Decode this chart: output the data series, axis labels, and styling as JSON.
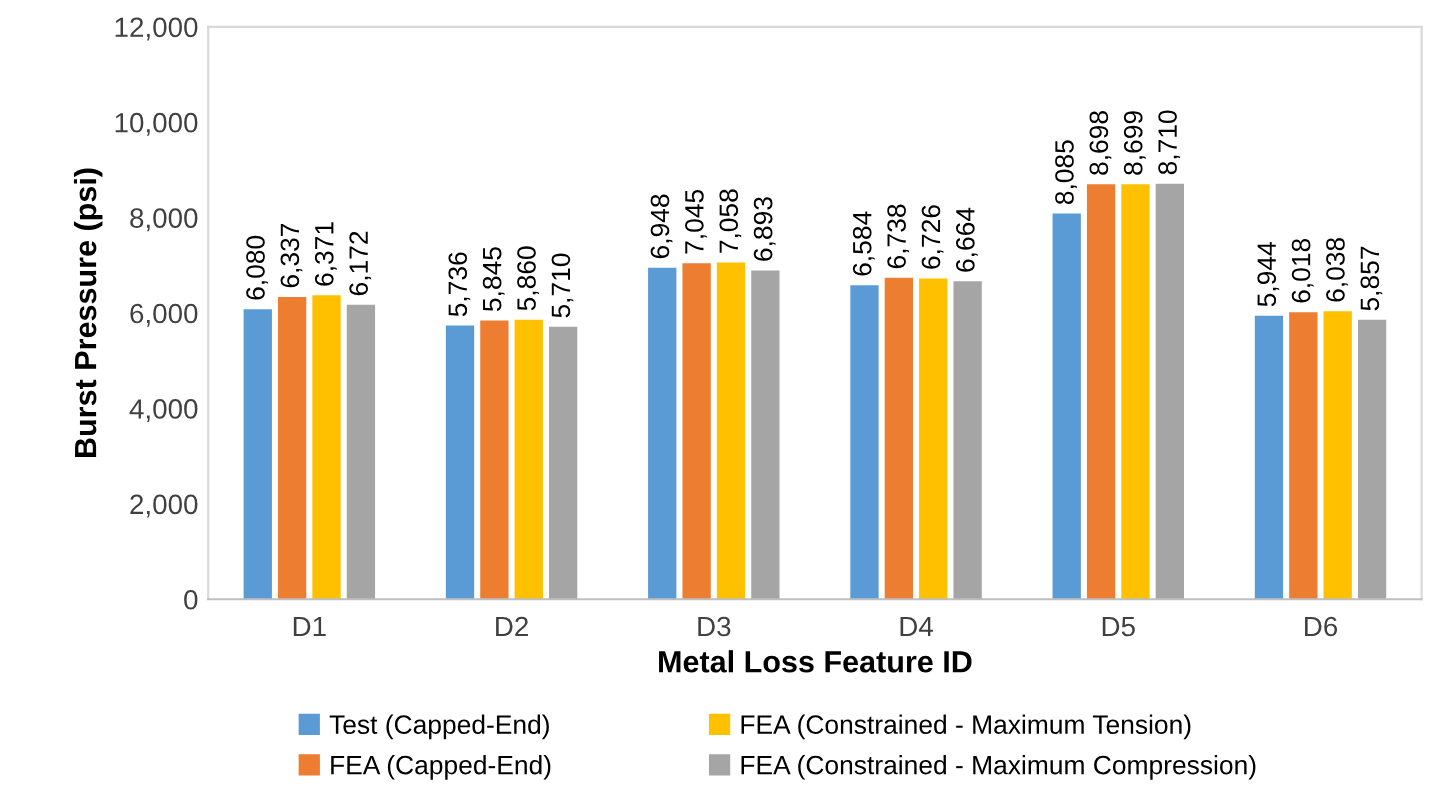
{
  "chart_data": {
    "type": "bar",
    "xlabel": "Metal Loss Feature ID",
    "ylabel": "Burst Pressure (psi)",
    "categories": [
      "D1",
      "D2",
      "D3",
      "D4",
      "D5",
      "D6"
    ],
    "series": [
      {
        "name": "Test (Capped-End)",
        "color": "#5b9bd5",
        "values": [
          6080,
          5736,
          6948,
          6584,
          8085,
          5944
        ],
        "value_labels": [
          "6,080",
          "5,736",
          "6,948",
          "6,584",
          "8,085",
          "5,944"
        ]
      },
      {
        "name": "FEA (Capped-End)",
        "color": "#ed7d31",
        "values": [
          6337,
          5845,
          7045,
          6738,
          8698,
          6018
        ],
        "value_labels": [
          "6,337",
          "5,845",
          "7,045",
          "6,738",
          "8,698",
          "6,018"
        ]
      },
      {
        "name": "FEA (Constrained - Maximum Tension)",
        "color": "#ffc000",
        "values": [
          6371,
          5860,
          7058,
          6726,
          8699,
          6038
        ],
        "value_labels": [
          "6,371",
          "5,860",
          "7,058",
          "6,726",
          "8,699",
          "6,038"
        ]
      },
      {
        "name": "FEA (Constrained - Maximum Compression)",
        "color": "#a5a5a5",
        "values": [
          6172,
          5710,
          6893,
          6664,
          8710,
          5857
        ],
        "value_labels": [
          "6,172",
          "5,710",
          "6,893",
          "6,664",
          "8,710",
          "5,857"
        ]
      }
    ],
    "ylim": [
      0,
      12000
    ],
    "yticks": [
      0,
      {
        "value": 2000,
        "label": "2,000"
      },
      {
        "value": 4000,
        "label": "4,000"
      },
      {
        "value": 6000,
        "label": "6,000"
      },
      {
        "value": 8000,
        "label": "8,000"
      },
      {
        "value": 10000,
        "label": "10,000"
      },
      {
        "value": 12000,
        "label": "12,000"
      }
    ],
    "legend": "bottom",
    "grid": false
  }
}
